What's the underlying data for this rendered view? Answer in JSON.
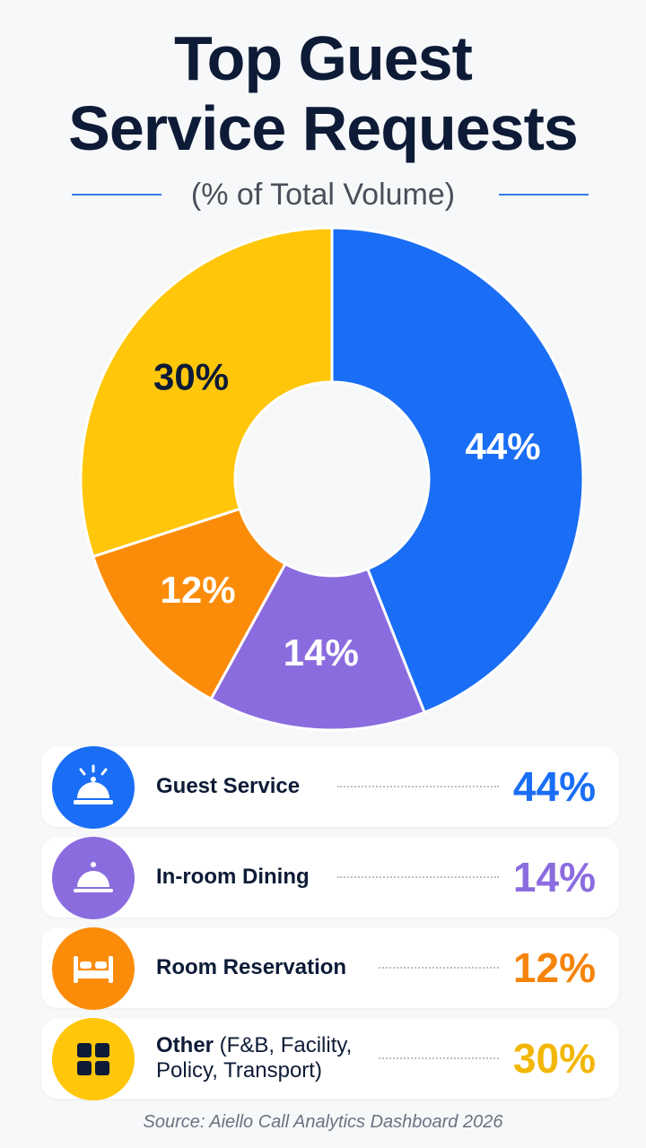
{
  "header": {
    "title_line1": "Top Guest",
    "title_line2": "Service Requests",
    "subtitle": "(% of Total Volume)"
  },
  "chart_data": {
    "type": "pie",
    "donut": true,
    "title": "Top Guest Service Requests",
    "subtitle": "(% of Total Volume)",
    "categories": [
      "Guest Service",
      "In-room Dining",
      "Room Reservation",
      "Other (F&B, Facility, Policy, Transport)"
    ],
    "values": [
      44,
      14,
      12,
      30
    ],
    "labels": [
      "44%",
      "14%",
      "12%",
      "30%"
    ],
    "colors": [
      "#1a6ef5",
      "#8b6cdf",
      "#fb8c0a",
      "#ffc60a"
    ],
    "label_colors": [
      "#ffffff",
      "#ffffff",
      "#ffffff",
      "#0d1b36"
    ]
  },
  "legend": [
    {
      "name": "Guest Service",
      "detail": "",
      "value": "44%",
      "color": "#1a6ef5",
      "value_color": "#1a6ef5",
      "icon": "service-bell-icon"
    },
    {
      "name": "In-room Dining",
      "detail": "",
      "value": "14%",
      "color": "#8b6cdf",
      "value_color": "#8b6cdf",
      "icon": "food-cloche-icon"
    },
    {
      "name": "Room Reservation",
      "detail": "",
      "value": "12%",
      "color": "#fb8c0a",
      "value_color": "#f5840a",
      "icon": "bed-icon"
    },
    {
      "name": "Other",
      "detail": " (F&B, Facility, Policy, Transport)",
      "value": "30%",
      "color": "#ffc60a",
      "value_color": "#f2b705",
      "icon": "grid-icon"
    }
  ],
  "footer": {
    "source": "Source: Aiello Call Analytics Dashboard 2026"
  }
}
